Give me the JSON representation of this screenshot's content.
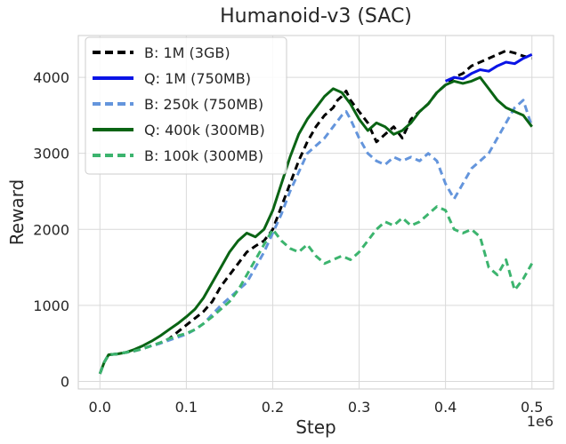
{
  "chart_data": {
    "type": "line",
    "title": "Humanoid-v3 (SAC)",
    "xlabel": "Step",
    "ylabel": "Reward",
    "x_offset_label": "1e6",
    "xlim": [
      -0.025,
      0.525
    ],
    "ylim": [
      -100,
      4550
    ],
    "xticks": [
      0.0,
      0.1,
      0.2,
      0.3,
      0.4,
      0.5
    ],
    "xtick_labels": [
      "0.0",
      "0.1",
      "0.2",
      "0.3",
      "0.4",
      "0.5"
    ],
    "yticks": [
      0,
      1000,
      2000,
      3000,
      4000
    ],
    "ytick_labels": [
      "0",
      "1000",
      "2000",
      "3000",
      "4000"
    ],
    "grid": true,
    "legend_position": "upper-left",
    "series": [
      {
        "name": "B: 1M (3GB)",
        "color": "#000000",
        "dash": "dashed",
        "points": [
          [
            0.0,
            100
          ],
          [
            0.005,
            250
          ],
          [
            0.01,
            350
          ],
          [
            0.02,
            360
          ],
          [
            0.03,
            380
          ],
          [
            0.04,
            400
          ],
          [
            0.05,
            430
          ],
          [
            0.06,
            470
          ],
          [
            0.07,
            500
          ],
          [
            0.08,
            560
          ],
          [
            0.09,
            650
          ],
          [
            0.1,
            740
          ],
          [
            0.11,
            830
          ],
          [
            0.12,
            920
          ],
          [
            0.13,
            1050
          ],
          [
            0.14,
            1250
          ],
          [
            0.15,
            1400
          ],
          [
            0.16,
            1550
          ],
          [
            0.17,
            1700
          ],
          [
            0.18,
            1780
          ],
          [
            0.19,
            1850
          ],
          [
            0.2,
            2000
          ],
          [
            0.21,
            2300
          ],
          [
            0.22,
            2600
          ],
          [
            0.23,
            2900
          ],
          [
            0.24,
            3150
          ],
          [
            0.25,
            3350
          ],
          [
            0.26,
            3500
          ],
          [
            0.27,
            3600
          ],
          [
            0.275,
            3700
          ],
          [
            0.28,
            3750
          ],
          [
            0.285,
            3820
          ],
          [
            0.29,
            3700
          ],
          [
            0.3,
            3550
          ],
          [
            0.31,
            3400
          ],
          [
            0.32,
            3150
          ],
          [
            0.33,
            3250
          ],
          [
            0.34,
            3350
          ],
          [
            0.35,
            3200
          ],
          [
            0.36,
            3450
          ],
          [
            0.37,
            3550
          ],
          [
            0.38,
            3650
          ],
          [
            0.39,
            3800
          ],
          [
            0.4,
            3900
          ],
          [
            0.41,
            4000
          ],
          [
            0.42,
            4050
          ],
          [
            0.43,
            4150
          ],
          [
            0.44,
            4200
          ],
          [
            0.45,
            4250
          ],
          [
            0.46,
            4300
          ],
          [
            0.47,
            4350
          ],
          [
            0.48,
            4320
          ],
          [
            0.49,
            4280
          ],
          [
            0.5,
            4250
          ]
        ]
      },
      {
        "name": "Q: 1M (750MB)",
        "color": "#0a14e6",
        "dash": "solid",
        "points": [
          [
            0.4,
            3950
          ],
          [
            0.41,
            4000
          ],
          [
            0.42,
            3980
          ],
          [
            0.43,
            4050
          ],
          [
            0.44,
            4100
          ],
          [
            0.45,
            4080
          ],
          [
            0.46,
            4150
          ],
          [
            0.47,
            4200
          ],
          [
            0.48,
            4180
          ],
          [
            0.49,
            4250
          ],
          [
            0.5,
            4300
          ]
        ]
      },
      {
        "name": "B: 250k (750MB)",
        "color": "#6495dc",
        "dash": "dashed",
        "points": [
          [
            0.0,
            100
          ],
          [
            0.005,
            250
          ],
          [
            0.01,
            350
          ],
          [
            0.02,
            360
          ],
          [
            0.03,
            380
          ],
          [
            0.04,
            400
          ],
          [
            0.05,
            430
          ],
          [
            0.06,
            470
          ],
          [
            0.07,
            500
          ],
          [
            0.08,
            540
          ],
          [
            0.09,
            580
          ],
          [
            0.1,
            620
          ],
          [
            0.11,
            680
          ],
          [
            0.12,
            760
          ],
          [
            0.13,
            880
          ],
          [
            0.14,
            1000
          ],
          [
            0.15,
            1100
          ],
          [
            0.16,
            1200
          ],
          [
            0.17,
            1300
          ],
          [
            0.18,
            1500
          ],
          [
            0.19,
            1700
          ],
          [
            0.2,
            1950
          ],
          [
            0.21,
            2200
          ],
          [
            0.22,
            2500
          ],
          [
            0.23,
            2750
          ],
          [
            0.24,
            3000
          ],
          [
            0.25,
            3100
          ],
          [
            0.26,
            3200
          ],
          [
            0.27,
            3350
          ],
          [
            0.28,
            3500
          ],
          [
            0.285,
            3550
          ],
          [
            0.29,
            3450
          ],
          [
            0.3,
            3200
          ],
          [
            0.31,
            3000
          ],
          [
            0.32,
            2900
          ],
          [
            0.33,
            2850
          ],
          [
            0.34,
            2950
          ],
          [
            0.35,
            2900
          ],
          [
            0.36,
            2950
          ],
          [
            0.37,
            2900
          ],
          [
            0.38,
            3000
          ],
          [
            0.39,
            2900
          ],
          [
            0.4,
            2600
          ],
          [
            0.41,
            2400
          ],
          [
            0.42,
            2600
          ],
          [
            0.43,
            2800
          ],
          [
            0.44,
            2900
          ],
          [
            0.45,
            3000
          ],
          [
            0.46,
            3200
          ],
          [
            0.47,
            3400
          ],
          [
            0.48,
            3600
          ],
          [
            0.49,
            3700
          ],
          [
            0.5,
            3350
          ]
        ]
      },
      {
        "name": "Q: 400k (300MB)",
        "color": "#0a6414",
        "dash": "solid",
        "points": [
          [
            0.0,
            100
          ],
          [
            0.005,
            250
          ],
          [
            0.01,
            350
          ],
          [
            0.02,
            360
          ],
          [
            0.03,
            380
          ],
          [
            0.04,
            420
          ],
          [
            0.05,
            470
          ],
          [
            0.06,
            530
          ],
          [
            0.07,
            600
          ],
          [
            0.08,
            680
          ],
          [
            0.09,
            760
          ],
          [
            0.1,
            850
          ],
          [
            0.11,
            950
          ],
          [
            0.12,
            1100
          ],
          [
            0.13,
            1300
          ],
          [
            0.14,
            1500
          ],
          [
            0.15,
            1700
          ],
          [
            0.16,
            1850
          ],
          [
            0.17,
            1950
          ],
          [
            0.18,
            1900
          ],
          [
            0.19,
            2000
          ],
          [
            0.2,
            2250
          ],
          [
            0.21,
            2600
          ],
          [
            0.22,
            2950
          ],
          [
            0.23,
            3250
          ],
          [
            0.24,
            3450
          ],
          [
            0.25,
            3600
          ],
          [
            0.26,
            3750
          ],
          [
            0.27,
            3850
          ],
          [
            0.28,
            3800
          ],
          [
            0.29,
            3650
          ],
          [
            0.3,
            3450
          ],
          [
            0.31,
            3300
          ],
          [
            0.32,
            3400
          ],
          [
            0.33,
            3350
          ],
          [
            0.34,
            3250
          ],
          [
            0.35,
            3300
          ],
          [
            0.36,
            3400
          ],
          [
            0.37,
            3550
          ],
          [
            0.38,
            3650
          ],
          [
            0.39,
            3800
          ],
          [
            0.4,
            3900
          ],
          [
            0.41,
            3950
          ],
          [
            0.42,
            3920
          ],
          [
            0.43,
            3950
          ],
          [
            0.44,
            4000
          ],
          [
            0.45,
            3850
          ],
          [
            0.46,
            3700
          ],
          [
            0.47,
            3600
          ],
          [
            0.48,
            3550
          ],
          [
            0.49,
            3500
          ],
          [
            0.5,
            3350
          ]
        ]
      },
      {
        "name": "B: 100k (300MB)",
        "color": "#3cb46e",
        "dash": "dashed",
        "points": [
          [
            0.0,
            100
          ],
          [
            0.005,
            250
          ],
          [
            0.01,
            350
          ],
          [
            0.02,
            360
          ],
          [
            0.03,
            380
          ],
          [
            0.04,
            400
          ],
          [
            0.05,
            430
          ],
          [
            0.06,
            470
          ],
          [
            0.07,
            510
          ],
          [
            0.08,
            560
          ],
          [
            0.09,
            600
          ],
          [
            0.1,
            630
          ],
          [
            0.11,
            680
          ],
          [
            0.12,
            760
          ],
          [
            0.13,
            850
          ],
          [
            0.14,
            950
          ],
          [
            0.15,
            1050
          ],
          [
            0.16,
            1200
          ],
          [
            0.17,
            1400
          ],
          [
            0.18,
            1600
          ],
          [
            0.19,
            1800
          ],
          [
            0.2,
            2000
          ],
          [
            0.21,
            1850
          ],
          [
            0.22,
            1750
          ],
          [
            0.23,
            1700
          ],
          [
            0.24,
            1800
          ],
          [
            0.25,
            1650
          ],
          [
            0.26,
            1550
          ],
          [
            0.27,
            1600
          ],
          [
            0.28,
            1650
          ],
          [
            0.29,
            1600
          ],
          [
            0.3,
            1700
          ],
          [
            0.31,
            1850
          ],
          [
            0.32,
            2000
          ],
          [
            0.33,
            2100
          ],
          [
            0.34,
            2050
          ],
          [
            0.35,
            2150
          ],
          [
            0.36,
            2050
          ],
          [
            0.37,
            2100
          ],
          [
            0.38,
            2200
          ],
          [
            0.39,
            2300
          ],
          [
            0.4,
            2250
          ],
          [
            0.41,
            2000
          ],
          [
            0.42,
            1950
          ],
          [
            0.43,
            2000
          ],
          [
            0.44,
            1900
          ],
          [
            0.45,
            1500
          ],
          [
            0.46,
            1400
          ],
          [
            0.47,
            1600
          ],
          [
            0.48,
            1200
          ],
          [
            0.49,
            1350
          ],
          [
            0.5,
            1550
          ]
        ]
      }
    ]
  }
}
